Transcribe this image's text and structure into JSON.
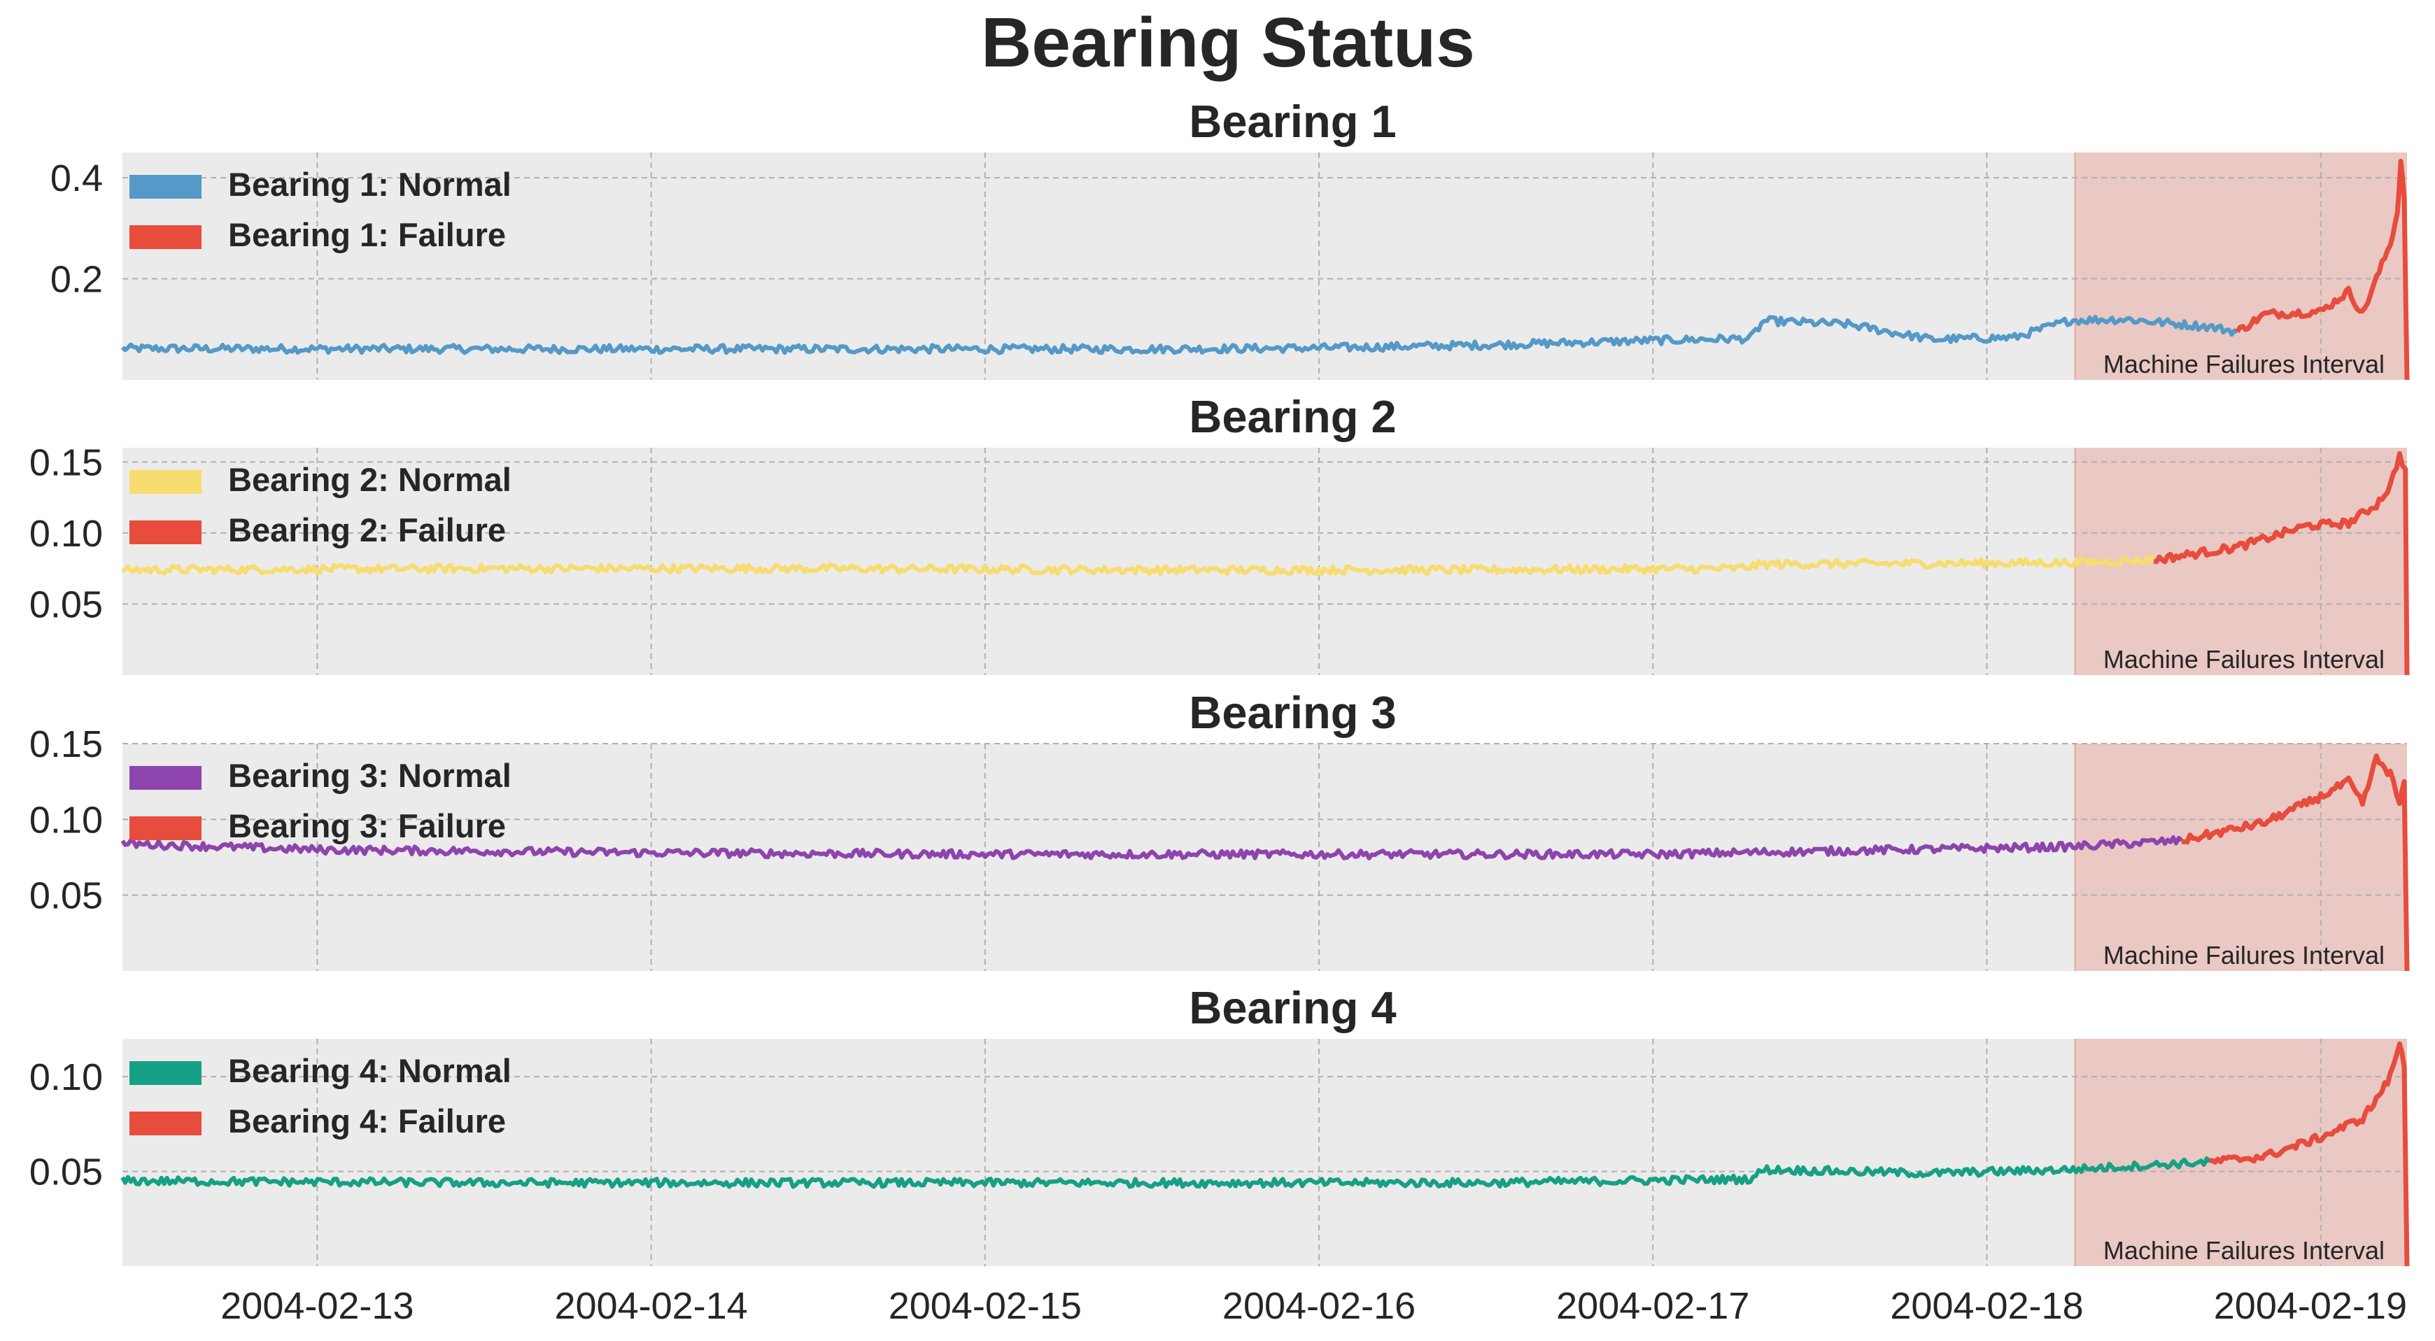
{
  "chart_data": {
    "type": "line",
    "title": "Bearing Status",
    "x_ticks": [
      "2004-02-13",
      "2004-02-14",
      "2004-02-15",
      "2004-02-16",
      "2004-02-17",
      "2004-02-18",
      "2004-02-19"
    ],
    "xlim": [
      "2004-02-12 10:00",
      "2004-02-19 06:12"
    ],
    "failure_interval": {
      "start": "2004-02-18 06:20",
      "end": "2004-02-19 06:12",
      "label": "Machine Failures Interval",
      "color": "#e74c3c"
    },
    "grid": true,
    "legend_position": "upper left",
    "panels": [
      {
        "title": "Bearing 1",
        "ylim": [
          0.0,
          0.45
        ],
        "yticks": [
          "0.2",
          "0.4"
        ],
        "ytick_values": [
          0.2,
          0.4
        ],
        "normal": {
          "name": "Bearing 1: Normal",
          "color": "#5499c7",
          "points": [
            [
              "2004-02-12 10:00",
              0.062
            ],
            [
              "2004-02-13 12:00",
              0.061
            ],
            [
              "2004-02-14 12:00",
              0.061
            ],
            [
              "2004-02-15 12:00",
              0.061
            ],
            [
              "2004-02-16 00:00",
              0.063
            ],
            [
              "2004-02-16 12:00",
              0.069
            ],
            [
              "2004-02-17 00:00",
              0.078
            ],
            [
              "2004-02-17 07:00",
              0.082
            ],
            [
              "2004-02-17 08:00",
              0.117
            ],
            [
              "2004-02-17 14:00",
              0.11
            ],
            [
              "2004-02-17 20:00",
              0.08
            ],
            [
              "2004-02-18 02:00",
              0.084
            ],
            [
              "2004-02-18 06:00",
              0.118
            ],
            [
              "2004-02-18 10:00",
              0.12
            ],
            [
              "2004-02-18 16:00",
              0.105
            ],
            [
              "2004-02-18 18:00",
              0.095
            ]
          ]
        },
        "failure": {
          "name": "Bearing 1: Failure",
          "color": "#e74c3c",
          "points": [
            [
              "2004-02-18 18:00",
              0.095
            ],
            [
              "2004-02-18 20:00",
              0.13
            ],
            [
              "2004-02-19 00:00",
              0.135
            ],
            [
              "2004-02-19 02:00",
              0.175
            ],
            [
              "2004-02-19 03:00",
              0.13
            ],
            [
              "2004-02-19 04:00",
              0.2
            ],
            [
              "2004-02-19 05:00",
              0.27
            ],
            [
              "2004-02-19 05:30",
              0.33
            ],
            [
              "2004-02-19 05:45",
              0.43
            ],
            [
              "2004-02-19 06:00",
              0.36
            ],
            [
              "2004-02-19 06:12",
              0.0
            ]
          ]
        }
      },
      {
        "title": "Bearing 2",
        "ylim": [
          0.0,
          0.16
        ],
        "yticks": [
          "0.05",
          "0.10",
          "0.15"
        ],
        "ytick_values": [
          0.05,
          0.1,
          0.15
        ],
        "normal": {
          "name": "Bearing 2: Normal",
          "color": "#f7dc6f",
          "points": [
            [
              "2004-02-12 10:00",
              0.074
            ],
            [
              "2004-02-13 12:00",
              0.075
            ],
            [
              "2004-02-14 12:00",
              0.075
            ],
            [
              "2004-02-15 12:00",
              0.074
            ],
            [
              "2004-02-16 12:00",
              0.074
            ],
            [
              "2004-02-17 06:00",
              0.075
            ],
            [
              "2004-02-17 08:00",
              0.078
            ],
            [
              "2004-02-18 06:00",
              0.079
            ],
            [
              "2004-02-18 12:00",
              0.081
            ]
          ]
        },
        "failure": {
          "name": "Bearing 2: Failure",
          "color": "#e74c3c",
          "points": [
            [
              "2004-02-18 12:00",
              0.081
            ],
            [
              "2004-02-18 18:00",
              0.09
            ],
            [
              "2004-02-18 23:00",
              0.105
            ],
            [
              "2004-02-19 02:00",
              0.107
            ],
            [
              "2004-02-19 04:00",
              0.12
            ],
            [
              "2004-02-19 05:00",
              0.133
            ],
            [
              "2004-02-19 05:40",
              0.155
            ],
            [
              "2004-02-19 06:05",
              0.145
            ],
            [
              "2004-02-19 06:12",
              0.0
            ]
          ]
        }
      },
      {
        "title": "Bearing 3",
        "ylim": [
          0.0,
          0.15
        ],
        "yticks": [
          "0.05",
          "0.10",
          "0.15"
        ],
        "ytick_values": [
          0.05,
          0.1,
          0.15
        ],
        "normal": {
          "name": "Bearing 3: Normal",
          "color": "#8e44ad",
          "points": [
            [
              "2004-02-12 10:00",
              0.084
            ],
            [
              "2004-02-13 00:00",
              0.08
            ],
            [
              "2004-02-14 00:00",
              0.078
            ],
            [
              "2004-02-15 00:00",
              0.077
            ],
            [
              "2004-02-16 00:00",
              0.077
            ],
            [
              "2004-02-17 00:00",
              0.077
            ],
            [
              "2004-02-17 12:00",
              0.079
            ],
            [
              "2004-02-18 06:00",
              0.082
            ],
            [
              "2004-02-18 14:00",
              0.086
            ]
          ]
        },
        "failure": {
          "name": "Bearing 3: Failure",
          "color": "#e74c3c",
          "points": [
            [
              "2004-02-18 14:00",
              0.086
            ],
            [
              "2004-02-18 20:00",
              0.098
            ],
            [
              "2004-02-19 00:00",
              0.115
            ],
            [
              "2004-02-19 02:00",
              0.125
            ],
            [
              "2004-02-19 03:00",
              0.11
            ],
            [
              "2004-02-19 04:00",
              0.14
            ],
            [
              "2004-02-19 05:00",
              0.13
            ],
            [
              "2004-02-19 05:40",
              0.11
            ],
            [
              "2004-02-19 06:00",
              0.125
            ],
            [
              "2004-02-19 06:12",
              0.0
            ]
          ]
        }
      },
      {
        "title": "Bearing 4",
        "ylim": [
          0.0,
          0.12
        ],
        "yticks": [
          "0.05",
          "0.10"
        ],
        "ytick_values": [
          0.05,
          0.1
        ],
        "normal": {
          "name": "Bearing 4: Normal",
          "color": "#16a085",
          "points": [
            [
              "2004-02-12 10:00",
              0.045
            ],
            [
              "2004-02-13 12:00",
              0.044
            ],
            [
              "2004-02-14 12:00",
              0.044
            ],
            [
              "2004-02-15 12:00",
              0.044
            ],
            [
              "2004-02-16 12:00",
              0.044
            ],
            [
              "2004-02-17 07:00",
              0.046
            ],
            [
              "2004-02-17 08:00",
              0.051
            ],
            [
              "2004-02-17 20:00",
              0.049
            ],
            [
              "2004-02-18 06:00",
              0.051
            ],
            [
              "2004-02-18 16:00",
              0.055
            ]
          ]
        },
        "failure": {
          "name": "Bearing 4: Failure",
          "color": "#e74c3c",
          "points": [
            [
              "2004-02-18 16:00",
              0.055
            ],
            [
              "2004-02-18 20:00",
              0.058
            ],
            [
              "2004-02-19 00:00",
              0.068
            ],
            [
              "2004-02-19 03:00",
              0.078
            ],
            [
              "2004-02-19 04:00",
              0.088
            ],
            [
              "2004-02-19 05:00",
              0.1
            ],
            [
              "2004-02-19 05:40",
              0.118
            ],
            [
              "2004-02-19 06:00",
              0.105
            ],
            [
              "2004-02-19 06:12",
              0.0
            ]
          ]
        }
      }
    ]
  }
}
